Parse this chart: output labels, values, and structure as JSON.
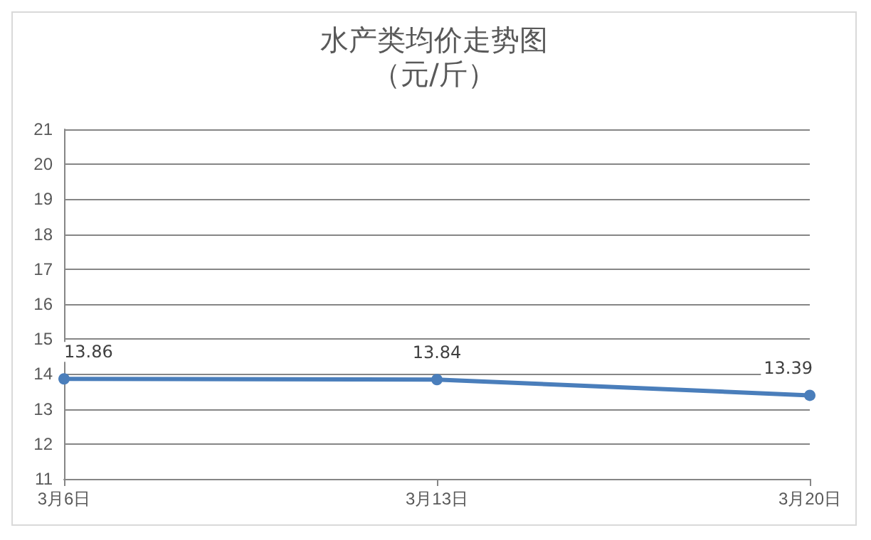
{
  "chart_data": {
    "type": "line",
    "title": "水产类均价走势图",
    "subtitle": "（元/斤）",
    "categories": [
      "3月6日",
      "3月13日",
      "3月20日"
    ],
    "series": [
      {
        "color": "#4a7ebb",
        "values": [
          13.86,
          13.84,
          13.39
        ]
      }
    ],
    "ylim": [
      11,
      21
    ],
    "yticks": [
      11,
      12,
      13,
      14,
      15,
      16,
      17,
      18,
      19,
      20,
      21
    ],
    "grid": "y",
    "marker": "circle",
    "line_style": "solid",
    "data_labels": true
  }
}
